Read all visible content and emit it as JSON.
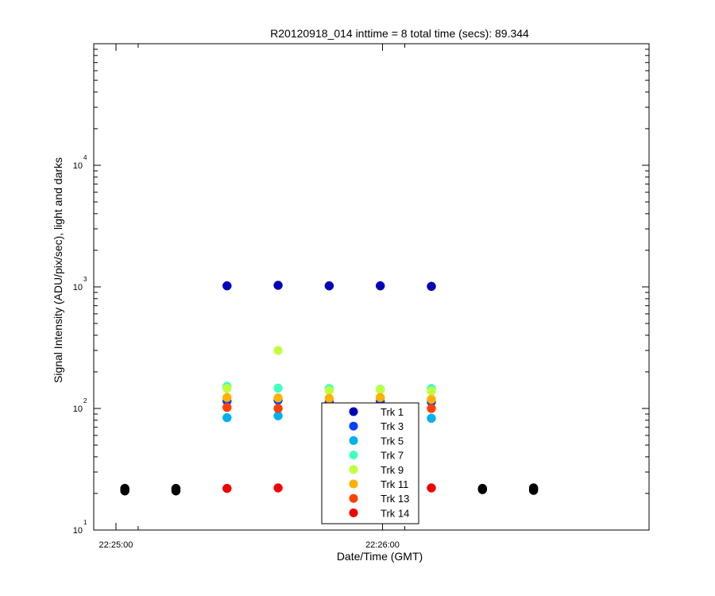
{
  "chart_data": {
    "type": "scatter",
    "title": "R20120918_014 inttime = 8 total time (secs): 89.344",
    "xlabel": "Date/Time (GMT)",
    "ylabel": "Signal Intensity (ADU/pix/sec), light and darks",
    "y_scale": "log",
    "ylim": [
      1,
      10000
    ],
    "y_ticks": [
      {
        "base": "10",
        "exp": "1",
        "value": 1
      },
      {
        "base": "10",
        "exp": "2",
        "value": 10
      },
      {
        "base": "10",
        "exp": "3",
        "value": 100
      },
      {
        "base": "10",
        "exp": "4",
        "value": 1000
      }
    ],
    "y_tick_note": "the printed exponents are offset by one from the plotted decades",
    "xlim": [
      "22:24:55",
      "22:27:00"
    ],
    "x_ticks": [
      "22:25:00",
      "22:26:00"
    ],
    "x_minor_ticks": [
      "22:25:05",
      "22:26:05"
    ],
    "grid": false,
    "legend": {
      "position": "bottom-center-inside"
    },
    "series": [
      {
        "name": "Trk 1",
        "color": "#0000b8",
        "points": [
          [
            "22:25:25",
            102
          ],
          [
            "22:25:36.5",
            103
          ],
          [
            "22:25:48",
            102
          ],
          [
            "22:25:59.5",
            102
          ],
          [
            "22:26:11",
            101
          ]
        ]
      },
      {
        "name": "Trk 3",
        "color": "#0040ff",
        "points": [
          [
            "22:25:25",
            11.5
          ],
          [
            "22:25:36.5",
            11.7
          ],
          [
            "22:25:48",
            11.3
          ],
          [
            "22:25:59.5",
            11.4
          ],
          [
            "22:26:11",
            11.3
          ]
        ]
      },
      {
        "name": "Trk 5",
        "color": "#00b0f0",
        "points": [
          [
            "22:25:25",
            8.4
          ],
          [
            "22:25:36.5",
            8.7
          ],
          [
            "22:25:48",
            8.3
          ],
          [
            "22:25:59.5",
            8.4
          ],
          [
            "22:26:11",
            8.3
          ]
        ]
      },
      {
        "name": "Trk 7",
        "color": "#40ffc0",
        "points": [
          [
            "22:25:25",
            15.2
          ],
          [
            "22:25:36.5",
            14.7
          ],
          [
            "22:25:48",
            14.6
          ],
          [
            "22:25:59.5",
            14.4
          ],
          [
            "22:26:11",
            14.6
          ]
        ]
      },
      {
        "name": "Trk 9",
        "color": "#c0ff40",
        "points": [
          [
            "22:25:25",
            14.6
          ],
          [
            "22:25:36.5",
            30
          ],
          [
            "22:25:48",
            14.0
          ],
          [
            "22:25:59.5",
            14.3
          ],
          [
            "22:26:11",
            13.9
          ]
        ]
      },
      {
        "name": "Trk 11",
        "color": "#ffb000",
        "points": [
          [
            "22:25:25",
            12.3
          ],
          [
            "22:25:36.5",
            12.2
          ],
          [
            "22:25:48",
            12.1
          ],
          [
            "22:25:59.5",
            12.3
          ],
          [
            "22:26:11",
            11.9
          ]
        ]
      },
      {
        "name": "Trk 13",
        "color": "#ff4000",
        "points": [
          [
            "22:25:25",
            10.2
          ],
          [
            "22:25:36.5",
            10.0
          ],
          [
            "22:25:48",
            10.1
          ],
          [
            "22:25:59.5",
            10.2
          ],
          [
            "22:26:11",
            10.0
          ]
        ]
      },
      {
        "name": "Trk 14",
        "color": "#f00000",
        "points": [
          [
            "22:25:25",
            2.2
          ],
          [
            "22:25:36.5",
            2.22
          ],
          [
            "22:25:48",
            2.2
          ],
          [
            "22:26:11",
            2.22
          ]
        ]
      },
      {
        "name": "",
        "color": "#000000",
        "points": [
          [
            "22:25:02",
            2.1
          ],
          [
            "22:25:02",
            2.15
          ],
          [
            "22:25:02",
            2.2
          ],
          [
            "22:25:13.5",
            2.1
          ],
          [
            "22:25:13.5",
            2.15
          ],
          [
            "22:25:13.5",
            2.2
          ],
          [
            "22:26:22.5",
            2.15
          ],
          [
            "22:26:22.5",
            2.2
          ],
          [
            "22:26:34",
            2.12
          ],
          [
            "22:26:34",
            2.17
          ],
          [
            "22:26:34",
            2.22
          ]
        ]
      }
    ]
  }
}
